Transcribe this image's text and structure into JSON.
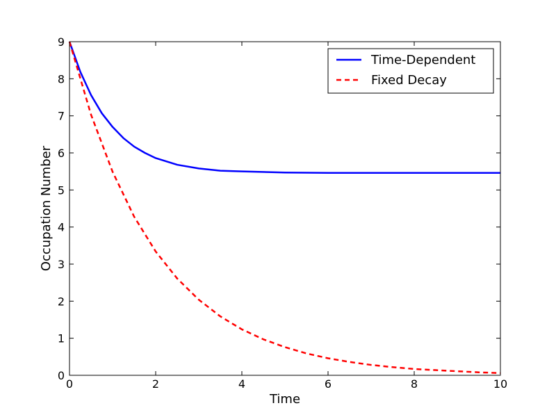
{
  "chart_data": {
    "type": "line",
    "xlabel": "Time",
    "ylabel": "Occupation Number",
    "xlim": [
      0,
      10
    ],
    "ylim": [
      0,
      9
    ],
    "xticks": [
      "0",
      "2",
      "4",
      "6",
      "8",
      "10"
    ],
    "yticks": [
      "0",
      "1",
      "2",
      "3",
      "4",
      "5",
      "6",
      "7",
      "8",
      "9"
    ],
    "grid": false,
    "legend_position": "top-right",
    "series": [
      {
        "name": "Time-Dependent",
        "color": "#0000ff",
        "style": "solid",
        "x": [
          0,
          0.25,
          0.5,
          0.75,
          1,
          1.25,
          1.5,
          1.75,
          2,
          2.5,
          3,
          3.5,
          4,
          5,
          6,
          7,
          8,
          9,
          10
        ],
        "y": [
          9.0,
          8.19,
          7.56,
          7.07,
          6.7,
          6.4,
          6.17,
          6.0,
          5.86,
          5.68,
          5.58,
          5.52,
          5.5,
          5.47,
          5.46,
          5.46,
          5.46,
          5.46,
          5.46
        ]
      },
      {
        "name": "Fixed Decay",
        "color": "#ff0000",
        "style": "dashed",
        "x": [
          0,
          0.5,
          1,
          1.5,
          2,
          2.5,
          3,
          3.5,
          4,
          4.5,
          5,
          5.5,
          6,
          6.5,
          7,
          7.5,
          8,
          8.5,
          9,
          9.5,
          10
        ],
        "y": [
          9.0,
          7.03,
          5.49,
          4.28,
          3.34,
          2.61,
          2.04,
          1.59,
          1.24,
          0.97,
          0.76,
          0.59,
          0.46,
          0.36,
          0.28,
          0.22,
          0.17,
          0.14,
          0.11,
          0.08,
          0.06
        ]
      }
    ]
  }
}
